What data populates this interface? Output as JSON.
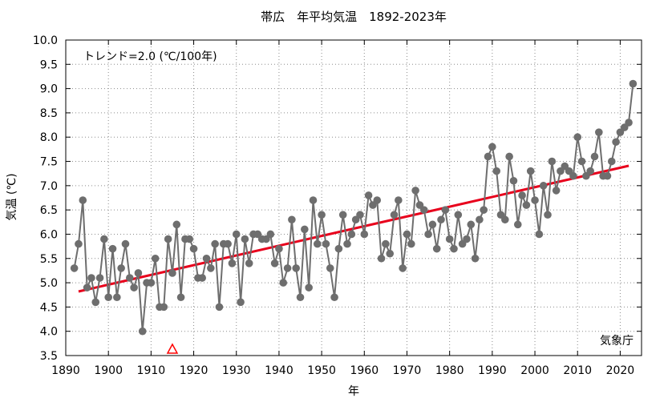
{
  "chart_data": {
    "type": "line",
    "title": "帯広　年平均気温　1892-2023年",
    "xlabel": "年",
    "ylabel": "気温 (℃)",
    "trend_label": "トレンド=2.0 (℃/100年)",
    "source_label": "気象庁",
    "xlim": [
      1890,
      2025
    ],
    "ylim": [
      3.5,
      10.0
    ],
    "x_ticks": [
      1890,
      1900,
      1910,
      1920,
      1930,
      1940,
      1950,
      1960,
      1970,
      1980,
      1990,
      2000,
      2010,
      2020
    ],
    "y_ticks": [
      "3.5",
      "4.0",
      "4.5",
      "5.0",
      "5.5",
      "6.0",
      "6.5",
      "7.0",
      "7.5",
      "8.0",
      "8.5",
      "9.0",
      "9.5",
      "10.0"
    ],
    "grid": true,
    "series": [
      {
        "color": "#6e6e6e",
        "x": [
          1892,
          1893,
          1894,
          1895,
          1896,
          1897,
          1898,
          1899,
          1900,
          1901,
          1902,
          1903,
          1904,
          1905,
          1906,
          1907,
          1908,
          1909,
          1910,
          1911,
          1912,
          1913,
          1914,
          1915,
          1916,
          1917,
          1918,
          1919,
          1920,
          1921,
          1922,
          1923,
          1924,
          1925,
          1926,
          1927,
          1928,
          1929,
          1930,
          1931,
          1932,
          1933,
          1934,
          1935,
          1936,
          1937,
          1938,
          1939,
          1940,
          1941,
          1942,
          1943,
          1944,
          1945,
          1946,
          1947,
          1948,
          1949,
          1950,
          1951,
          1952,
          1953,
          1954,
          1955,
          1956,
          1957,
          1958,
          1959,
          1960,
          1961,
          1962,
          1963,
          1964,
          1965,
          1966,
          1967,
          1968,
          1969,
          1970,
          1971,
          1972,
          1973,
          1974,
          1975,
          1976,
          1977,
          1978,
          1979,
          1980,
          1981,
          1982,
          1983,
          1984,
          1985,
          1986,
          1987,
          1988,
          1989,
          1990,
          1991,
          1992,
          1993,
          1994,
          1995,
          1996,
          1997,
          1998,
          1999,
          2000,
          2001,
          2002,
          2003,
          2004,
          2005,
          2006,
          2007,
          2008,
          2009,
          2010,
          2011,
          2012,
          2013,
          2014,
          2015,
          2016,
          2017,
          2018,
          2019,
          2020,
          2021,
          2022,
          2023
        ],
        "values": [
          5.3,
          5.8,
          6.7,
          4.9,
          5.1,
          4.6,
          5.1,
          5.9,
          4.7,
          5.7,
          4.7,
          5.3,
          5.8,
          5.1,
          4.9,
          5.2,
          4.0,
          5.0,
          5.0,
          5.5,
          4.5,
          4.5,
          5.9,
          5.2,
          6.2,
          4.7,
          5.9,
          5.9,
          5.7,
          5.1,
          5.1,
          5.5,
          5.3,
          5.8,
          4.5,
          5.8,
          5.8,
          5.4,
          6.0,
          4.6,
          5.9,
          5.4,
          6.0,
          6.0,
          5.9,
          5.9,
          6.0,
          5.4,
          5.7,
          5.0,
          5.3,
          6.3,
          5.3,
          4.7,
          6.1,
          4.9,
          6.7,
          5.8,
          6.4,
          5.8,
          5.3,
          4.7,
          5.7,
          6.4,
          5.8,
          6.0,
          6.3,
          6.4,
          6.0,
          6.8,
          6.6,
          6.7,
          5.5,
          5.8,
          5.6,
          6.4,
          6.7,
          5.3,
          6.0,
          5.8,
          6.9,
          6.6,
          6.5,
          6.0,
          6.2,
          5.7,
          6.3,
          6.5,
          5.9,
          5.7,
          6.4,
          5.8,
          5.9,
          6.2,
          5.5,
          6.3,
          6.5,
          7.6,
          7.8,
          7.3,
          6.4,
          6.3,
          7.6,
          7.1,
          6.2,
          6.8,
          6.6,
          7.3,
          6.7,
          6.0,
          7.0,
          6.4,
          7.5,
          6.9,
          7.3,
          7.4,
          7.3,
          7.2,
          8.0,
          7.5,
          7.2,
          7.3,
          7.6,
          8.1,
          7.2,
          7.2,
          7.5,
          7.9,
          8.1,
          8.2,
          8.3,
          9.1
        ]
      }
    ],
    "trend": {
      "color": "#e8001c",
      "x": [
        1893,
        2022
      ],
      "y": [
        4.82,
        7.41
      ]
    },
    "marker": {
      "type": "triangle",
      "x": 1915,
      "color": "#ff0000"
    }
  }
}
